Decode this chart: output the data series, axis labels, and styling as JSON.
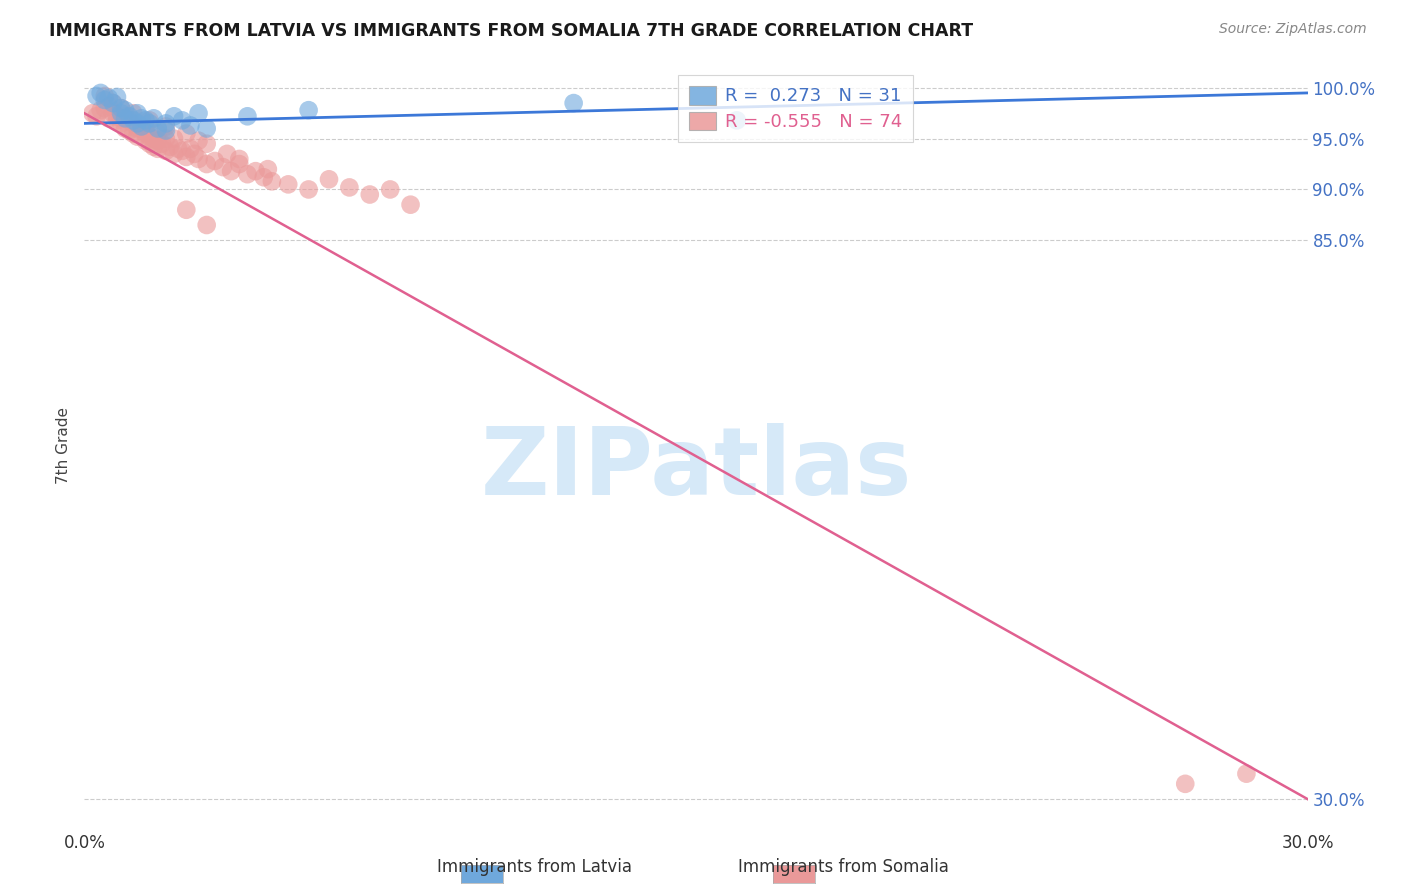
{
  "title": "IMMIGRANTS FROM LATVIA VS IMMIGRANTS FROM SOMALIA 7TH GRADE CORRELATION CHART",
  "source": "Source: ZipAtlas.com",
  "ylabel": "7th Grade",
  "y_ticks": [
    30.0,
    85.0,
    90.0,
    95.0,
    100.0
  ],
  "y_tick_labels": [
    "30.0%",
    "85.0%",
    "90.0%",
    "95.0%",
    "100.0%"
  ],
  "x_ticks": [
    0.0,
    0.05,
    0.1,
    0.15,
    0.2,
    0.25,
    0.3
  ],
  "x_tick_labels": [
    "0.0%",
    "",
    "",
    "",
    "",
    "",
    "30.0%"
  ],
  "xlim": [
    0.0,
    0.3
  ],
  "ylim": [
    27.0,
    102.5
  ],
  "legend_r_latvia": "0.273",
  "legend_n_latvia": "31",
  "legend_r_somalia": "-0.555",
  "legend_n_somalia": "74",
  "color_latvia": "#6fa8dc",
  "color_somalia": "#ea9999",
  "color_latvia_line": "#3c78d8",
  "color_somalia_line": "#e06090",
  "watermark": "ZIPatlas",
  "watermark_color": "#d6e9f8",
  "latvia_x": [
    0.003,
    0.004,
    0.005,
    0.006,
    0.007,
    0.008,
    0.009,
    0.009,
    0.01,
    0.01,
    0.011,
    0.012,
    0.013,
    0.013,
    0.014,
    0.014,
    0.015,
    0.016,
    0.017,
    0.018,
    0.02,
    0.02,
    0.022,
    0.024,
    0.026,
    0.028,
    0.03,
    0.04,
    0.055,
    0.12,
    0.16
  ],
  "latvia_y": [
    99.2,
    99.5,
    98.8,
    99.0,
    98.5,
    99.1,
    98.0,
    97.5,
    97.8,
    97.0,
    97.2,
    96.8,
    97.5,
    96.5,
    97.0,
    96.2,
    96.8,
    96.5,
    97.0,
    96.0,
    96.5,
    95.8,
    97.2,
    96.8,
    96.3,
    97.5,
    96.0,
    97.2,
    97.8,
    98.5,
    96.8
  ],
  "somalia_x": [
    0.002,
    0.003,
    0.004,
    0.005,
    0.006,
    0.006,
    0.007,
    0.008,
    0.008,
    0.009,
    0.009,
    0.01,
    0.01,
    0.011,
    0.011,
    0.012,
    0.012,
    0.013,
    0.013,
    0.014,
    0.015,
    0.015,
    0.016,
    0.016,
    0.017,
    0.017,
    0.018,
    0.018,
    0.019,
    0.02,
    0.02,
    0.021,
    0.022,
    0.023,
    0.024,
    0.025,
    0.026,
    0.027,
    0.028,
    0.03,
    0.032,
    0.034,
    0.036,
    0.038,
    0.04,
    0.042,
    0.044,
    0.046,
    0.05,
    0.055,
    0.06,
    0.065,
    0.07,
    0.075,
    0.08,
    0.015,
    0.018,
    0.022,
    0.028,
    0.035,
    0.005,
    0.007,
    0.009,
    0.012,
    0.016,
    0.02,
    0.025,
    0.03,
    0.038,
    0.045,
    0.025,
    0.03,
    0.27,
    0.285
  ],
  "somalia_y": [
    97.5,
    97.2,
    97.8,
    98.0,
    97.0,
    98.2,
    97.5,
    97.2,
    96.8,
    97.0,
    96.5,
    97.2,
    96.0,
    96.8,
    95.8,
    96.5,
    95.5,
    96.0,
    95.2,
    96.0,
    95.5,
    94.8,
    95.2,
    94.5,
    95.0,
    94.2,
    94.8,
    94.0,
    94.5,
    95.0,
    93.8,
    94.2,
    93.5,
    94.0,
    93.8,
    93.2,
    94.0,
    93.5,
    93.0,
    92.5,
    92.8,
    92.2,
    91.8,
    92.5,
    91.5,
    91.8,
    91.2,
    90.8,
    90.5,
    90.0,
    91.0,
    90.2,
    89.5,
    90.0,
    88.5,
    96.0,
    95.5,
    95.0,
    94.8,
    93.5,
    99.2,
    98.5,
    98.0,
    97.5,
    96.8,
    96.2,
    95.5,
    94.5,
    93.0,
    92.0,
    88.0,
    86.5,
    31.5,
    32.5
  ],
  "somalia_line_x": [
    0.0,
    0.3
  ],
  "somalia_line_y": [
    97.5,
    30.0
  ],
  "latvia_line_x": [
    0.0,
    0.3
  ],
  "latvia_line_y": [
    96.5,
    99.5
  ]
}
